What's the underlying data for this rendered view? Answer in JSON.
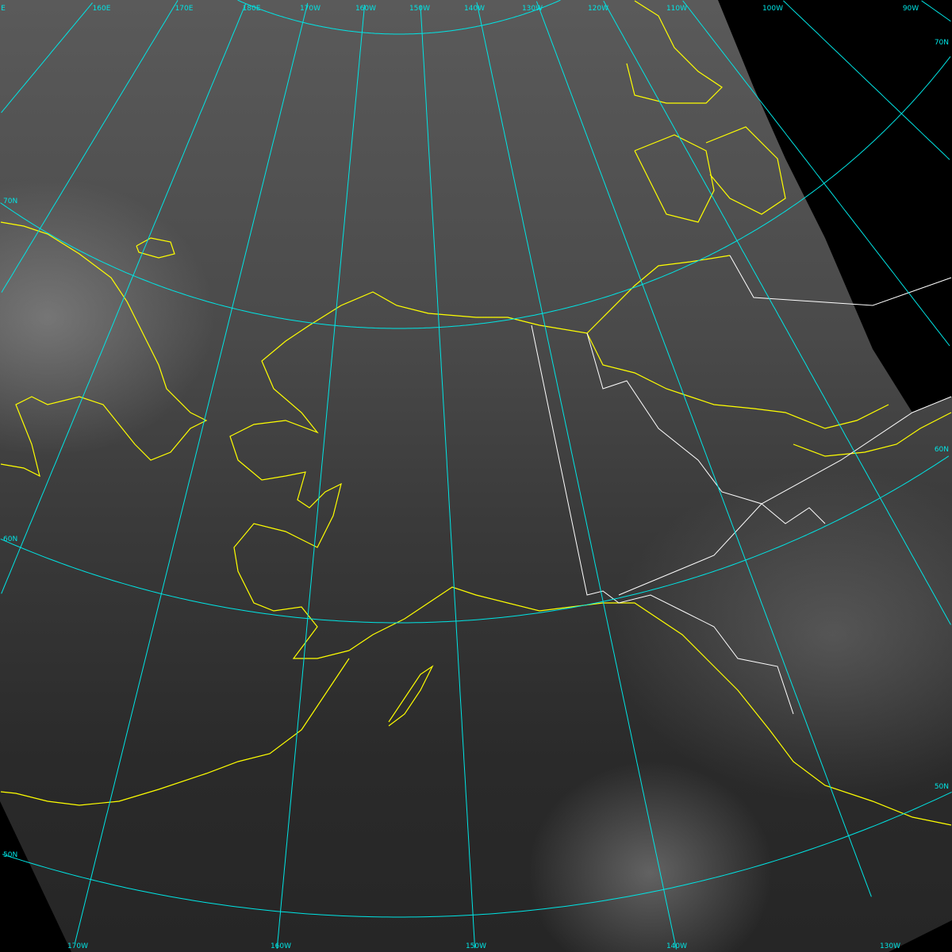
{
  "image": {
    "type": "satellite-imagery",
    "region": "Alaska"
  },
  "colors": {
    "graticule": "#00e5e5",
    "coastline": "#ffff00",
    "border": "#ffffff",
    "nodata": "#000000"
  },
  "graticule": {
    "meridians_lon": [
      150,
      160,
      170,
      180,
      -170,
      -160,
      -150,
      -140,
      -130,
      -120,
      -110,
      -100,
      -90
    ],
    "parallels_lat": [
      50,
      60,
      70,
      80
    ],
    "top_labels": [
      "E",
      "160E",
      "170E",
      "180E",
      "170W",
      "160W",
      "150W",
      "140W",
      "130W",
      "120W",
      "110W",
      "100W",
      "90W"
    ],
    "bottom_labels": [
      "170W",
      "160W",
      "150W",
      "140W",
      "130W"
    ],
    "left_labels": [
      "70N",
      "60N",
      "50N"
    ],
    "right_labels": [
      "70N",
      "60N",
      "50N"
    ]
  }
}
